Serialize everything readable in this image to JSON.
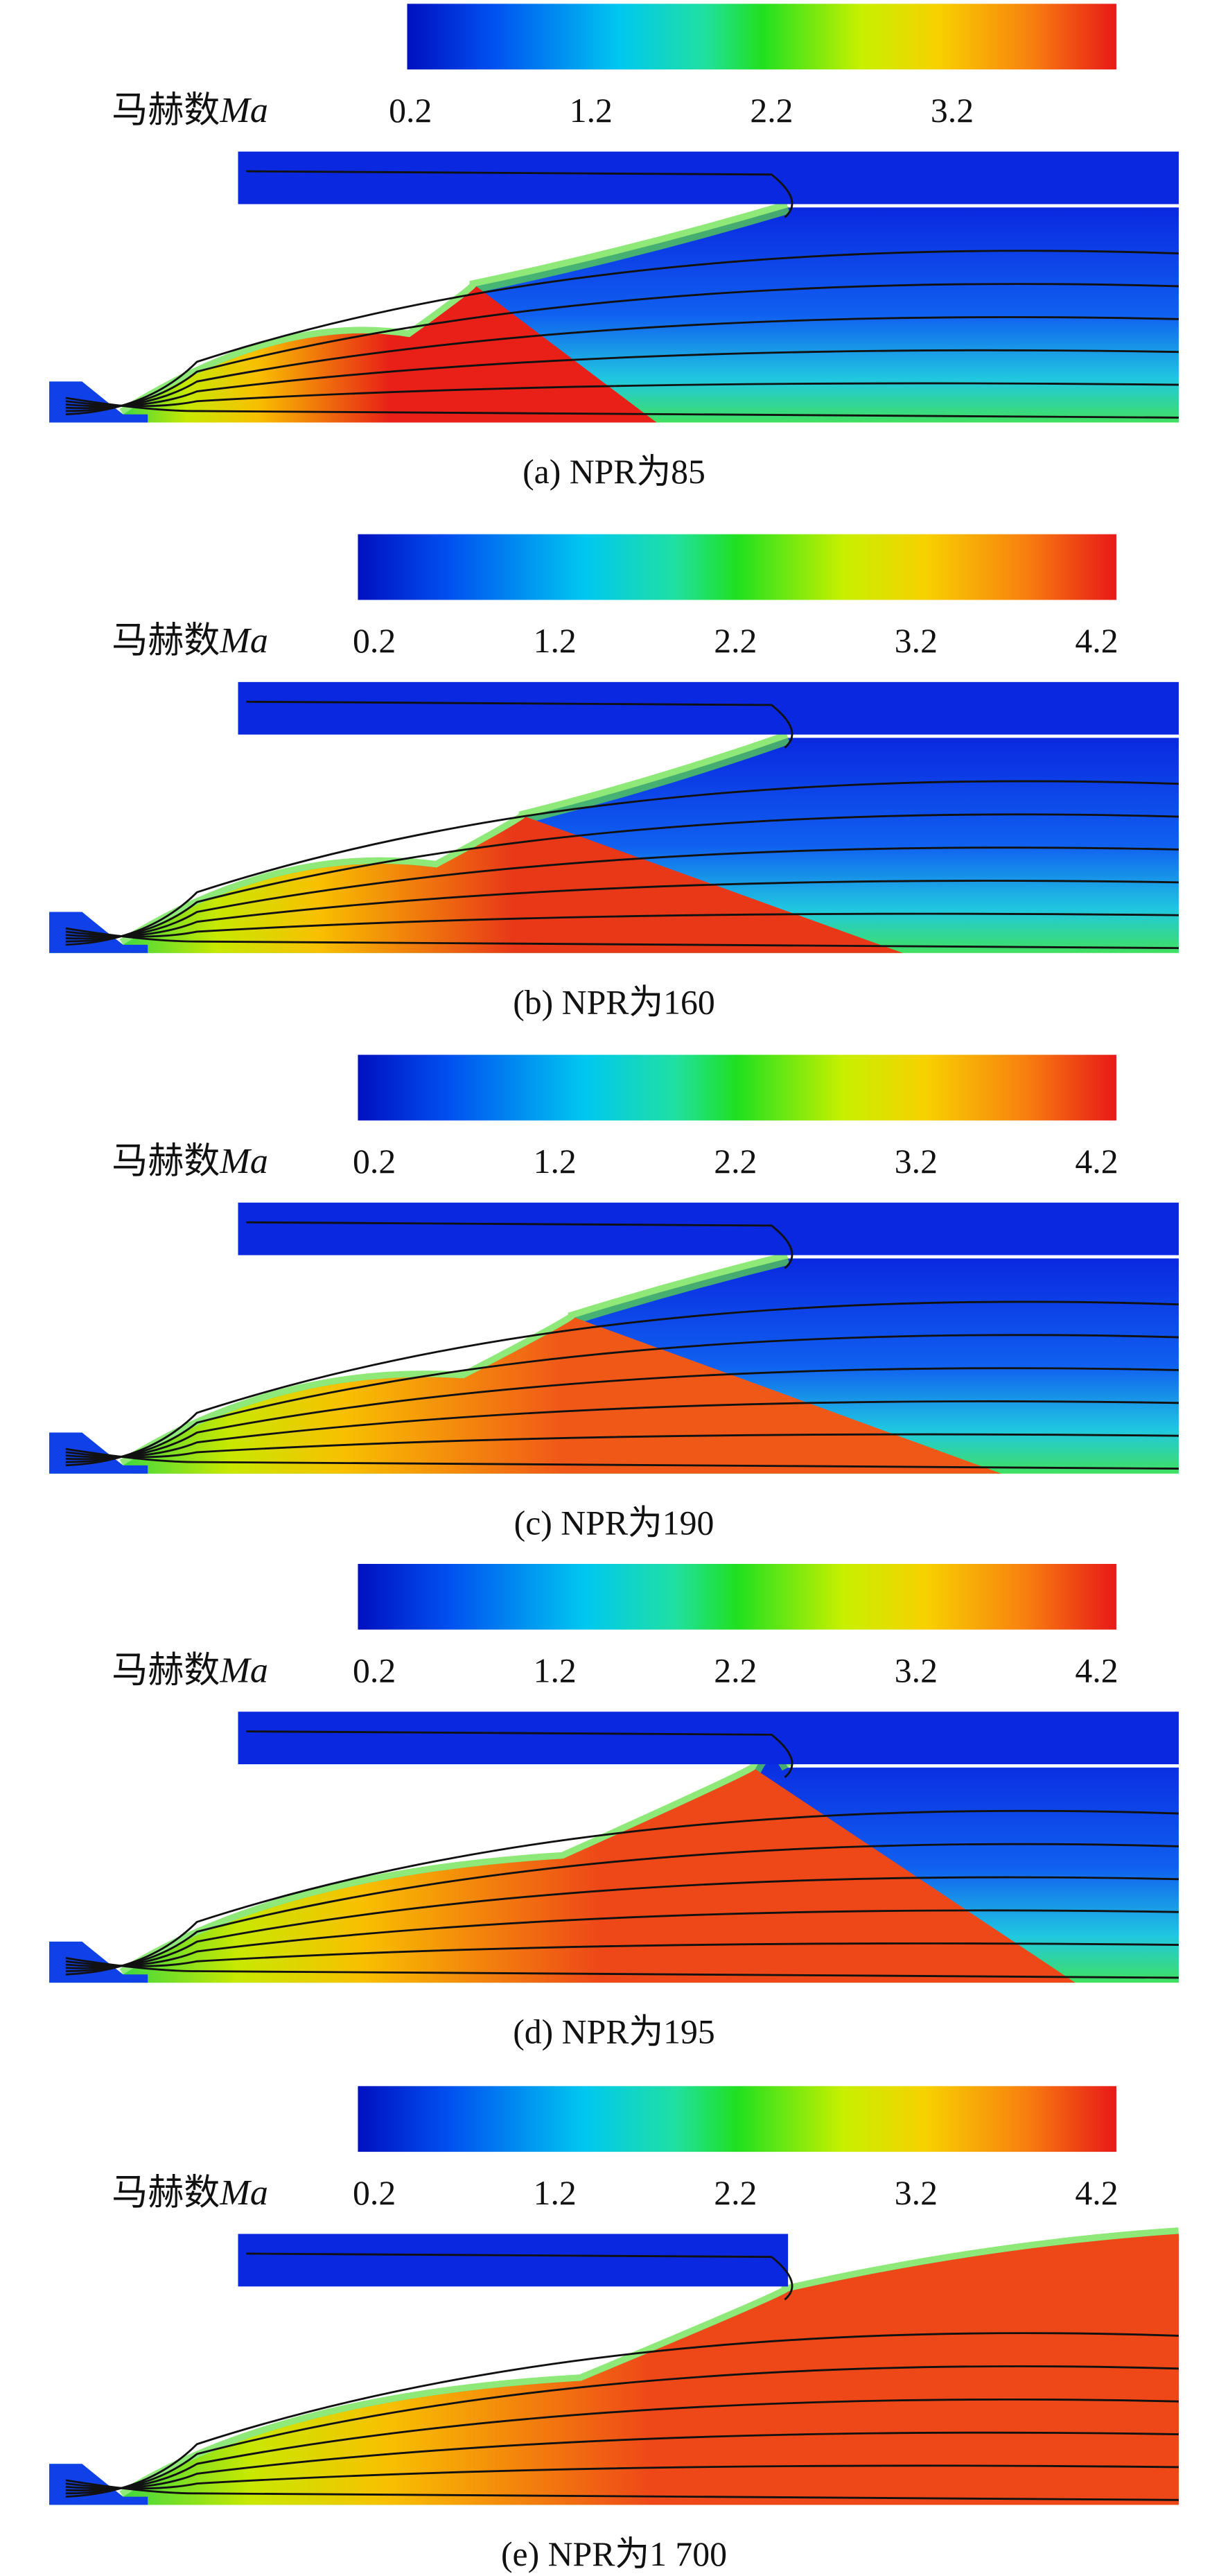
{
  "panels": [
    {
      "colorbar_label": "马赫数",
      "colorbar_symbol": "Ma",
      "ticks": [
        "0.2",
        "1.2",
        "2.2",
        "3.2"
      ],
      "caption": "(a) NPR为85"
    },
    {
      "colorbar_label": "马赫数",
      "colorbar_symbol": "Ma",
      "ticks": [
        "0.2",
        "1.2",
        "2.2",
        "3.2",
        "4.2"
      ],
      "caption": "(b) NPR为160"
    },
    {
      "colorbar_label": "马赫数",
      "colorbar_symbol": "Ma",
      "ticks": [
        "0.2",
        "1.2",
        "2.2",
        "3.2",
        "4.2"
      ],
      "caption": "(c) NPR为190"
    },
    {
      "colorbar_label": "马赫数",
      "colorbar_symbol": "Ma",
      "ticks": [
        "0.2",
        "1.2",
        "2.2",
        "3.2",
        "4.2"
      ],
      "caption": "(d) NPR为195"
    },
    {
      "colorbar_label": "马赫数",
      "colorbar_symbol": "Ma",
      "ticks": [
        "0.2",
        "1.2",
        "2.2",
        "3.2",
        "4.2"
      ],
      "caption": "(e) NPR为1 700"
    }
  ]
}
